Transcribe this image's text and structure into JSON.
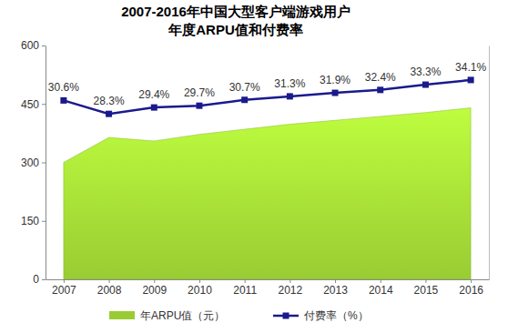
{
  "chart_data": {
    "type": "combo",
    "title": [
      "2007-2016年中国大型客户端游戏用户",
      "年度ARPU值和付费率"
    ],
    "categories": [
      "2007",
      "2008",
      "2009",
      "2010",
      "2011",
      "2012",
      "2013",
      "2014",
      "2015",
      "2016"
    ],
    "series": [
      {
        "name": "年ARPU值（元）",
        "type": "area",
        "color": "#99cc33",
        "values": [
          300,
          364,
          355,
          372,
          385,
          398,
          408,
          418,
          428,
          440
        ]
      },
      {
        "name": "付费率（%）",
        "type": "line",
        "color": "#1a1a8c",
        "marker": "square",
        "axis": "y2",
        "values": [
          30.6,
          28.3,
          29.4,
          29.7,
          30.7,
          31.3,
          31.9,
          32.4,
          33.3,
          34.1
        ],
        "value_labels": [
          "30.6%",
          "28.3%",
          "29.4%",
          "29.7%",
          "30.7%",
          "31.3%",
          "31.9%",
          "32.4%",
          "33.3%",
          "34.1%"
        ]
      }
    ],
    "ylim": [
      0,
      600
    ],
    "yticks": [
      0,
      150,
      300,
      450,
      600
    ],
    "y2lim": [
      0,
      40
    ],
    "y2ticks": [],
    "data_labels": true,
    "grid": false,
    "legend": "bottom"
  }
}
